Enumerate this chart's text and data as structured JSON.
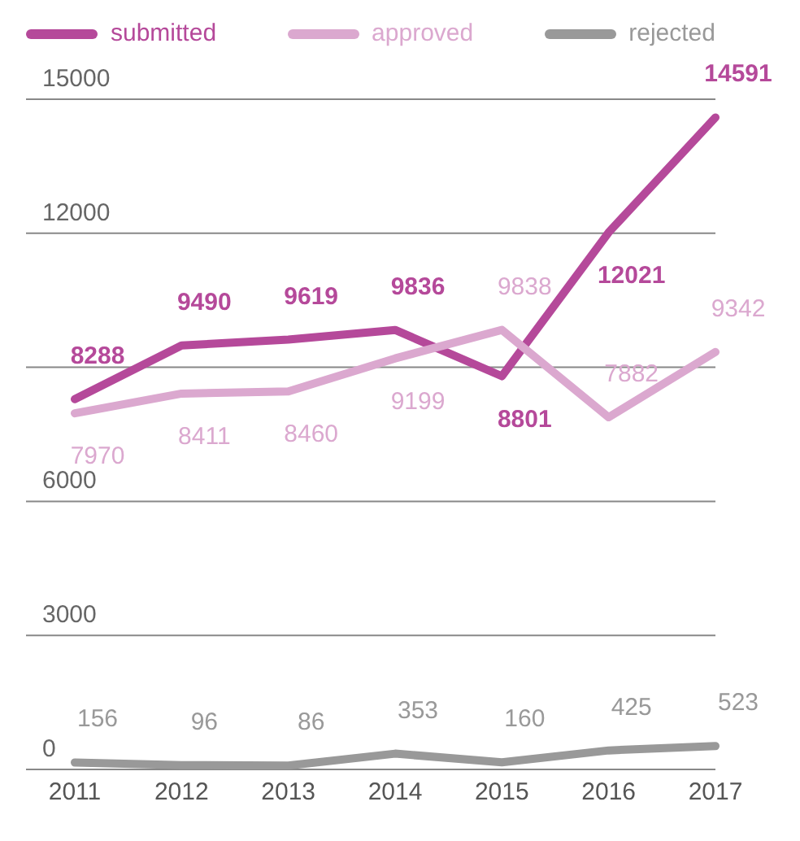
{
  "chart_data": {
    "type": "line",
    "categories": [
      "2011",
      "2012",
      "2013",
      "2014",
      "2015",
      "2016",
      "2017"
    ],
    "series": [
      {
        "name": "submitted",
        "color": "#b5499a",
        "values": [
          8288,
          9490,
          9619,
          9836,
          8801,
          12021,
          14591
        ]
      },
      {
        "name": "approved",
        "color": "#dba8cf",
        "values": [
          7970,
          8411,
          8460,
          9199,
          9838,
          7882,
          9342
        ]
      },
      {
        "name": "rejected",
        "color": "#999999",
        "values": [
          156,
          96,
          86,
          353,
          160,
          425,
          523
        ]
      }
    ],
    "ylim": [
      0,
      15000
    ],
    "yticks": [
      0,
      3000,
      6000,
      {
        "value": 9000,
        "label": null
      },
      12000,
      15000
    ],
    "grid": "y",
    "legend": "top",
    "data_labels": true,
    "marker": "none",
    "line_style": "solid"
  }
}
